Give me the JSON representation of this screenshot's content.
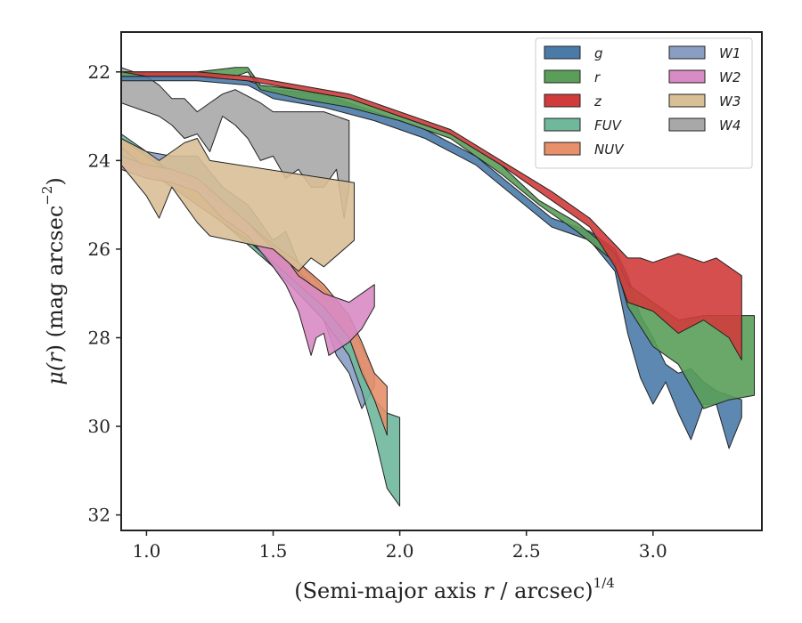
{
  "chart_data": {
    "type": "area",
    "xlabel": {
      "main": "(Semi-major axis ",
      "var": "r",
      "unit": " / arcsec)",
      "sup": "1/4"
    },
    "ylabel": {
      "pre": "μ(",
      "var": "r",
      "post": ") (mag arcsec",
      "sup": "−2",
      "end": ")"
    },
    "xlim": [
      0.9,
      3.43
    ],
    "ylim": [
      32.35,
      21.1
    ],
    "y_inverted": true,
    "x_ticks": [
      {
        "value": 1.0,
        "label": "1.0"
      },
      {
        "value": 1.5,
        "label": "1.5"
      },
      {
        "value": 2.0,
        "label": "2.0"
      },
      {
        "value": 2.5,
        "label": "2.5"
      },
      {
        "value": 3.0,
        "label": "3.0"
      }
    ],
    "y_ticks": [
      {
        "value": 22,
        "label": "22"
      },
      {
        "value": 24,
        "label": "24"
      },
      {
        "value": 26,
        "label": "26"
      },
      {
        "value": 28,
        "label": "28"
      },
      {
        "value": 30,
        "label": "30"
      },
      {
        "value": 32,
        "label": "32"
      }
    ],
    "grid": false,
    "legend_position": "top-right",
    "legend_columns": 2,
    "series": [
      {
        "name": "W4",
        "color": "#a8a8a8",
        "upper": [
          [
            0.9,
            21.9
          ],
          [
            1.0,
            22.1
          ],
          [
            1.05,
            22.3
          ],
          [
            1.1,
            22.6
          ],
          [
            1.15,
            22.6
          ],
          [
            1.2,
            22.9
          ],
          [
            1.25,
            22.7
          ],
          [
            1.3,
            22.5
          ],
          [
            1.35,
            22.4
          ],
          [
            1.45,
            22.7
          ],
          [
            1.5,
            22.9
          ],
          [
            1.6,
            22.9
          ],
          [
            1.7,
            22.9
          ],
          [
            1.8,
            23.1
          ]
        ],
        "lower": [
          [
            0.9,
            22.7
          ],
          [
            1.0,
            22.9
          ],
          [
            1.05,
            23.0
          ],
          [
            1.1,
            23.2
          ],
          [
            1.15,
            23.5
          ],
          [
            1.2,
            23.4
          ],
          [
            1.25,
            23.8
          ],
          [
            1.3,
            23.0
          ],
          [
            1.35,
            23.2
          ],
          [
            1.4,
            23.5
          ],
          [
            1.45,
            24.0
          ],
          [
            1.5,
            23.9
          ],
          [
            1.55,
            24.4
          ],
          [
            1.6,
            24.2
          ],
          [
            1.65,
            24.6
          ],
          [
            1.7,
            24.6
          ],
          [
            1.75,
            24.2
          ],
          [
            1.78,
            25.3
          ],
          [
            1.8,
            24.6
          ]
        ]
      },
      {
        "name": "W1",
        "color": "#8a9ec4",
        "upper": [
          [
            0.9,
            23.6
          ],
          [
            1.0,
            23.8
          ],
          [
            1.1,
            23.9
          ],
          [
            1.2,
            23.9
          ],
          [
            1.3,
            24.6
          ],
          [
            1.4,
            25.0
          ],
          [
            1.5,
            25.8
          ],
          [
            1.55,
            25.6
          ],
          [
            1.6,
            26.3
          ],
          [
            1.7,
            26.9
          ],
          [
            1.8,
            27.6
          ],
          [
            1.85,
            28.2
          ],
          [
            1.9,
            28.8
          ]
        ],
        "lower": [
          [
            0.9,
            24.0
          ],
          [
            1.0,
            24.2
          ],
          [
            1.1,
            24.4
          ],
          [
            1.2,
            24.6
          ],
          [
            1.3,
            25.3
          ],
          [
            1.4,
            25.8
          ],
          [
            1.5,
            26.4
          ],
          [
            1.6,
            27.0
          ],
          [
            1.7,
            27.6
          ],
          [
            1.75,
            28.4
          ],
          [
            1.8,
            28.8
          ],
          [
            1.85,
            29.6
          ],
          [
            1.9,
            29.1
          ]
        ]
      },
      {
        "name": "FUV",
        "color": "#6fb89c",
        "upper": [
          [
            0.9,
            23.4
          ],
          [
            1.0,
            23.8
          ],
          [
            1.1,
            24.3
          ],
          [
            1.2,
            24.6
          ],
          [
            1.3,
            25.0
          ],
          [
            1.4,
            25.5
          ],
          [
            1.5,
            26.0
          ],
          [
            1.6,
            26.5
          ],
          [
            1.7,
            27.1
          ],
          [
            1.8,
            28.0
          ],
          [
            1.85,
            28.7
          ],
          [
            1.9,
            29.4
          ],
          [
            1.95,
            29.7
          ],
          [
            2.0,
            29.8
          ]
        ],
        "lower": [
          [
            0.9,
            23.6
          ],
          [
            1.0,
            24.1
          ],
          [
            1.1,
            24.6
          ],
          [
            1.2,
            24.9
          ],
          [
            1.3,
            25.4
          ],
          [
            1.4,
            25.9
          ],
          [
            1.5,
            26.4
          ],
          [
            1.6,
            27.0
          ],
          [
            1.7,
            27.6
          ],
          [
            1.8,
            28.4
          ],
          [
            1.85,
            29.2
          ],
          [
            1.9,
            30.2
          ],
          [
            1.95,
            31.4
          ],
          [
            2.0,
            31.8
          ]
        ]
      },
      {
        "name": "NUV",
        "color": "#e7906a",
        "upper": [
          [
            0.9,
            23.5
          ],
          [
            1.0,
            23.9
          ],
          [
            1.1,
            24.3
          ],
          [
            1.2,
            24.6
          ],
          [
            1.3,
            25.0
          ],
          [
            1.4,
            25.4
          ],
          [
            1.5,
            25.9
          ],
          [
            1.6,
            26.3
          ],
          [
            1.7,
            26.8
          ],
          [
            1.8,
            27.5
          ],
          [
            1.85,
            28.1
          ],
          [
            1.9,
            28.8
          ],
          [
            1.95,
            29.1
          ]
        ],
        "lower": [
          [
            0.9,
            23.7
          ],
          [
            1.0,
            24.2
          ],
          [
            1.1,
            24.6
          ],
          [
            1.2,
            25.0
          ],
          [
            1.3,
            25.4
          ],
          [
            1.4,
            25.8
          ],
          [
            1.5,
            26.3
          ],
          [
            1.6,
            26.8
          ],
          [
            1.7,
            27.3
          ],
          [
            1.8,
            28.0
          ],
          [
            1.85,
            28.8
          ],
          [
            1.9,
            29.4
          ],
          [
            1.95,
            30.2
          ]
        ]
      },
      {
        "name": "W2",
        "color": "#d88bc4",
        "upper": [
          [
            0.9,
            23.9
          ],
          [
            1.0,
            24.1
          ],
          [
            1.1,
            24.2
          ],
          [
            1.2,
            24.4
          ],
          [
            1.3,
            24.9
          ],
          [
            1.4,
            25.4
          ],
          [
            1.5,
            26.0
          ],
          [
            1.55,
            26.2
          ],
          [
            1.6,
            26.6
          ],
          [
            1.7,
            27.0
          ],
          [
            1.8,
            27.2
          ],
          [
            1.9,
            26.8
          ]
        ],
        "lower": [
          [
            0.9,
            24.2
          ],
          [
            1.0,
            24.4
          ],
          [
            1.1,
            24.5
          ],
          [
            1.2,
            24.7
          ],
          [
            1.3,
            25.3
          ],
          [
            1.4,
            25.7
          ],
          [
            1.5,
            26.4
          ],
          [
            1.55,
            26.8
          ],
          [
            1.6,
            27.4
          ],
          [
            1.62,
            27.8
          ],
          [
            1.65,
            28.4
          ],
          [
            1.67,
            28.0
          ],
          [
            1.7,
            27.9
          ],
          [
            1.72,
            28.4
          ],
          [
            1.8,
            28.1
          ],
          [
            1.85,
            27.8
          ],
          [
            1.9,
            27.3
          ]
        ]
      },
      {
        "name": "W3",
        "color": "#d8bf96",
        "upper": [
          [
            0.9,
            23.5
          ],
          [
            1.0,
            23.8
          ],
          [
            1.05,
            24.0
          ],
          [
            1.1,
            23.8
          ],
          [
            1.15,
            23.6
          ],
          [
            1.2,
            23.5
          ],
          [
            1.25,
            24.0
          ],
          [
            1.82,
            24.5
          ]
        ],
        "lower": [
          [
            0.9,
            24.1
          ],
          [
            1.0,
            24.8
          ],
          [
            1.05,
            25.3
          ],
          [
            1.1,
            24.6
          ],
          [
            1.15,
            25.0
          ],
          [
            1.2,
            25.4
          ],
          [
            1.25,
            25.7
          ],
          [
            1.5,
            26.0
          ],
          [
            1.6,
            26.5
          ],
          [
            1.65,
            26.2
          ],
          [
            1.7,
            26.4
          ],
          [
            1.82,
            25.8
          ]
        ]
      },
      {
        "name": "g",
        "color": "#4a7ba8",
        "upper": [
          [
            0.9,
            22.1
          ],
          [
            1.0,
            22.1
          ],
          [
            1.2,
            22.1
          ],
          [
            1.4,
            22.2
          ],
          [
            1.5,
            22.4
          ],
          [
            1.7,
            22.5
          ],
          [
            1.9,
            22.9
          ],
          [
            2.1,
            23.3
          ],
          [
            2.3,
            23.9
          ],
          [
            2.45,
            24.6
          ],
          [
            2.6,
            25.3
          ],
          [
            2.75,
            25.6
          ],
          [
            2.85,
            26.0
          ],
          [
            2.9,
            26.6
          ],
          [
            2.95,
            27.5
          ],
          [
            3.0,
            28.0
          ],
          [
            3.05,
            28.6
          ],
          [
            3.1,
            28.8
          ],
          [
            3.15,
            28.7
          ],
          [
            3.2,
            29.0
          ],
          [
            3.25,
            29.2
          ],
          [
            3.3,
            29.3
          ],
          [
            3.35,
            29.4
          ]
        ],
        "lower": [
          [
            0.9,
            22.2
          ],
          [
            1.0,
            22.2
          ],
          [
            1.2,
            22.2
          ],
          [
            1.4,
            22.3
          ],
          [
            1.5,
            22.6
          ],
          [
            1.7,
            22.8
          ],
          [
            1.9,
            23.1
          ],
          [
            2.1,
            23.5
          ],
          [
            2.3,
            24.1
          ],
          [
            2.45,
            24.8
          ],
          [
            2.6,
            25.5
          ],
          [
            2.75,
            25.8
          ],
          [
            2.85,
            26.5
          ],
          [
            2.9,
            27.9
          ],
          [
            2.95,
            28.9
          ],
          [
            3.0,
            29.5
          ],
          [
            3.05,
            29.0
          ],
          [
            3.1,
            29.7
          ],
          [
            3.15,
            30.3
          ],
          [
            3.2,
            29.5
          ],
          [
            3.25,
            29.5
          ],
          [
            3.3,
            30.5
          ],
          [
            3.35,
            29.8
          ]
        ]
      },
      {
        "name": "r",
        "color": "#5a9e5a",
        "upper": [
          [
            0.9,
            22.0
          ],
          [
            1.0,
            22.0
          ],
          [
            1.2,
            22.0
          ],
          [
            1.35,
            21.9
          ],
          [
            1.4,
            21.9
          ],
          [
            1.45,
            22.3
          ],
          [
            1.6,
            22.4
          ],
          [
            1.8,
            22.6
          ],
          [
            2.0,
            23.0
          ],
          [
            2.2,
            23.4
          ],
          [
            2.4,
            24.1
          ],
          [
            2.55,
            24.9
          ],
          [
            2.7,
            25.4
          ],
          [
            2.85,
            26.1
          ],
          [
            2.9,
            26.8
          ],
          [
            3.0,
            27.2
          ],
          [
            3.1,
            27.6
          ],
          [
            3.2,
            27.5
          ],
          [
            3.3,
            27.5
          ],
          [
            3.4,
            27.5
          ]
        ],
        "lower": [
          [
            0.9,
            22.1
          ],
          [
            1.0,
            22.1
          ],
          [
            1.2,
            22.1
          ],
          [
            1.35,
            22.1
          ],
          [
            1.4,
            22.0
          ],
          [
            1.45,
            22.4
          ],
          [
            1.6,
            22.6
          ],
          [
            1.8,
            22.8
          ],
          [
            2.0,
            23.1
          ],
          [
            2.2,
            23.5
          ],
          [
            2.4,
            24.3
          ],
          [
            2.55,
            25.0
          ],
          [
            2.7,
            25.6
          ],
          [
            2.85,
            26.3
          ],
          [
            2.9,
            27.3
          ],
          [
            3.0,
            28.2
          ],
          [
            3.1,
            28.6
          ],
          [
            3.2,
            29.6
          ],
          [
            3.3,
            29.4
          ],
          [
            3.4,
            29.3
          ]
        ]
      },
      {
        "name": "z",
        "color": "#d03c3c",
        "upper": [
          [
            0.9,
            22.0
          ],
          [
            1.0,
            22.0
          ],
          [
            1.2,
            22.0
          ],
          [
            1.4,
            22.1
          ],
          [
            1.6,
            22.3
          ],
          [
            1.8,
            22.5
          ],
          [
            2.0,
            22.9
          ],
          [
            2.2,
            23.3
          ],
          [
            2.4,
            24.0
          ],
          [
            2.6,
            24.7
          ],
          [
            2.75,
            25.3
          ],
          [
            2.85,
            25.9
          ],
          [
            2.9,
            26.2
          ],
          [
            2.95,
            26.2
          ],
          [
            3.0,
            26.3
          ],
          [
            3.1,
            26.1
          ],
          [
            3.2,
            26.3
          ],
          [
            3.25,
            26.2
          ],
          [
            3.35,
            26.6
          ]
        ],
        "lower": [
          [
            0.9,
            22.0
          ],
          [
            1.0,
            22.1
          ],
          [
            1.2,
            22.1
          ],
          [
            1.4,
            22.2
          ],
          [
            1.6,
            22.4
          ],
          [
            1.8,
            22.6
          ],
          [
            2.0,
            23.0
          ],
          [
            2.2,
            23.4
          ],
          [
            2.4,
            24.1
          ],
          [
            2.6,
            24.9
          ],
          [
            2.75,
            25.5
          ],
          [
            2.85,
            26.4
          ],
          [
            2.9,
            27.2
          ],
          [
            2.95,
            27.3
          ],
          [
            3.0,
            27.4
          ],
          [
            3.1,
            27.9
          ],
          [
            3.2,
            27.6
          ],
          [
            3.3,
            28.0
          ],
          [
            3.35,
            28.5
          ]
        ]
      }
    ],
    "legend": [
      {
        "name": "g",
        "color": "#4a7ba8"
      },
      {
        "name": "r",
        "color": "#5a9e5a"
      },
      {
        "name": "z",
        "color": "#d03c3c"
      },
      {
        "name": "FUV",
        "color": "#6fb89c"
      },
      {
        "name": "NUV",
        "color": "#e7906a"
      },
      {
        "name": "W1",
        "color": "#8a9ec4"
      },
      {
        "name": "W2",
        "color": "#d88bc4"
      },
      {
        "name": "W3",
        "color": "#d8bf96"
      },
      {
        "name": "W4",
        "color": "#a8a8a8"
      }
    ]
  }
}
